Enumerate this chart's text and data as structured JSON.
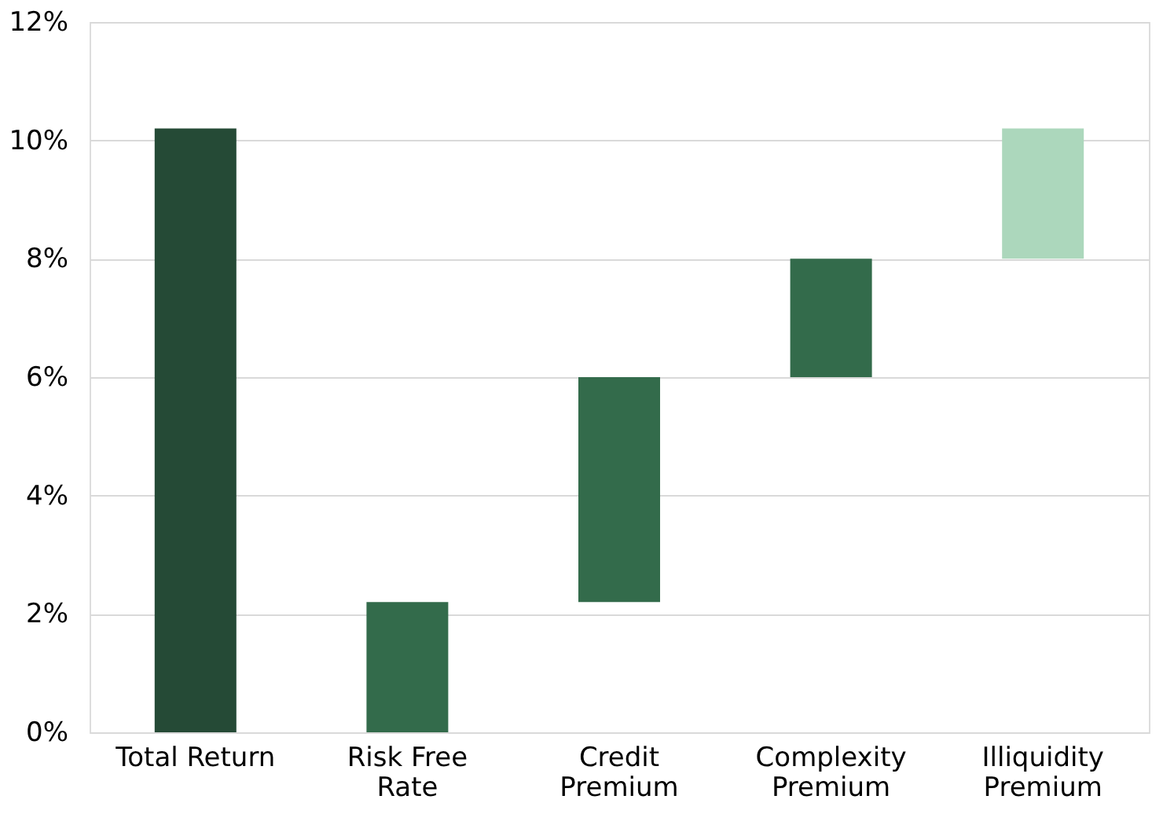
{
  "chart_data": {
    "type": "bar",
    "categories": [
      "Total Return",
      "Risk Free Rate",
      "Credit Premium",
      "Complexity Premium",
      "Illiquidity Premium"
    ],
    "values": [
      10.2,
      2.2,
      3.8,
      2.0,
      2.2
    ],
    "base": [
      0,
      0,
      2.2,
      6.0,
      8.0
    ],
    "colors": [
      "#254a36",
      "#336b4b",
      "#336b4b",
      "#336b4b",
      "#acd7bc"
    ],
    "ylim": [
      0,
      12
    ],
    "yticks": [
      {
        "value": 0,
        "label": "0%"
      },
      {
        "value": 2,
        "label": "2%"
      },
      {
        "value": 4,
        "label": "4%"
      },
      {
        "value": 6,
        "label": "6%"
      },
      {
        "value": 8,
        "label": "8%"
      },
      {
        "value": 10,
        "label": "10%"
      },
      {
        "value": 12,
        "label": "12%"
      }
    ],
    "grid": "y"
  }
}
